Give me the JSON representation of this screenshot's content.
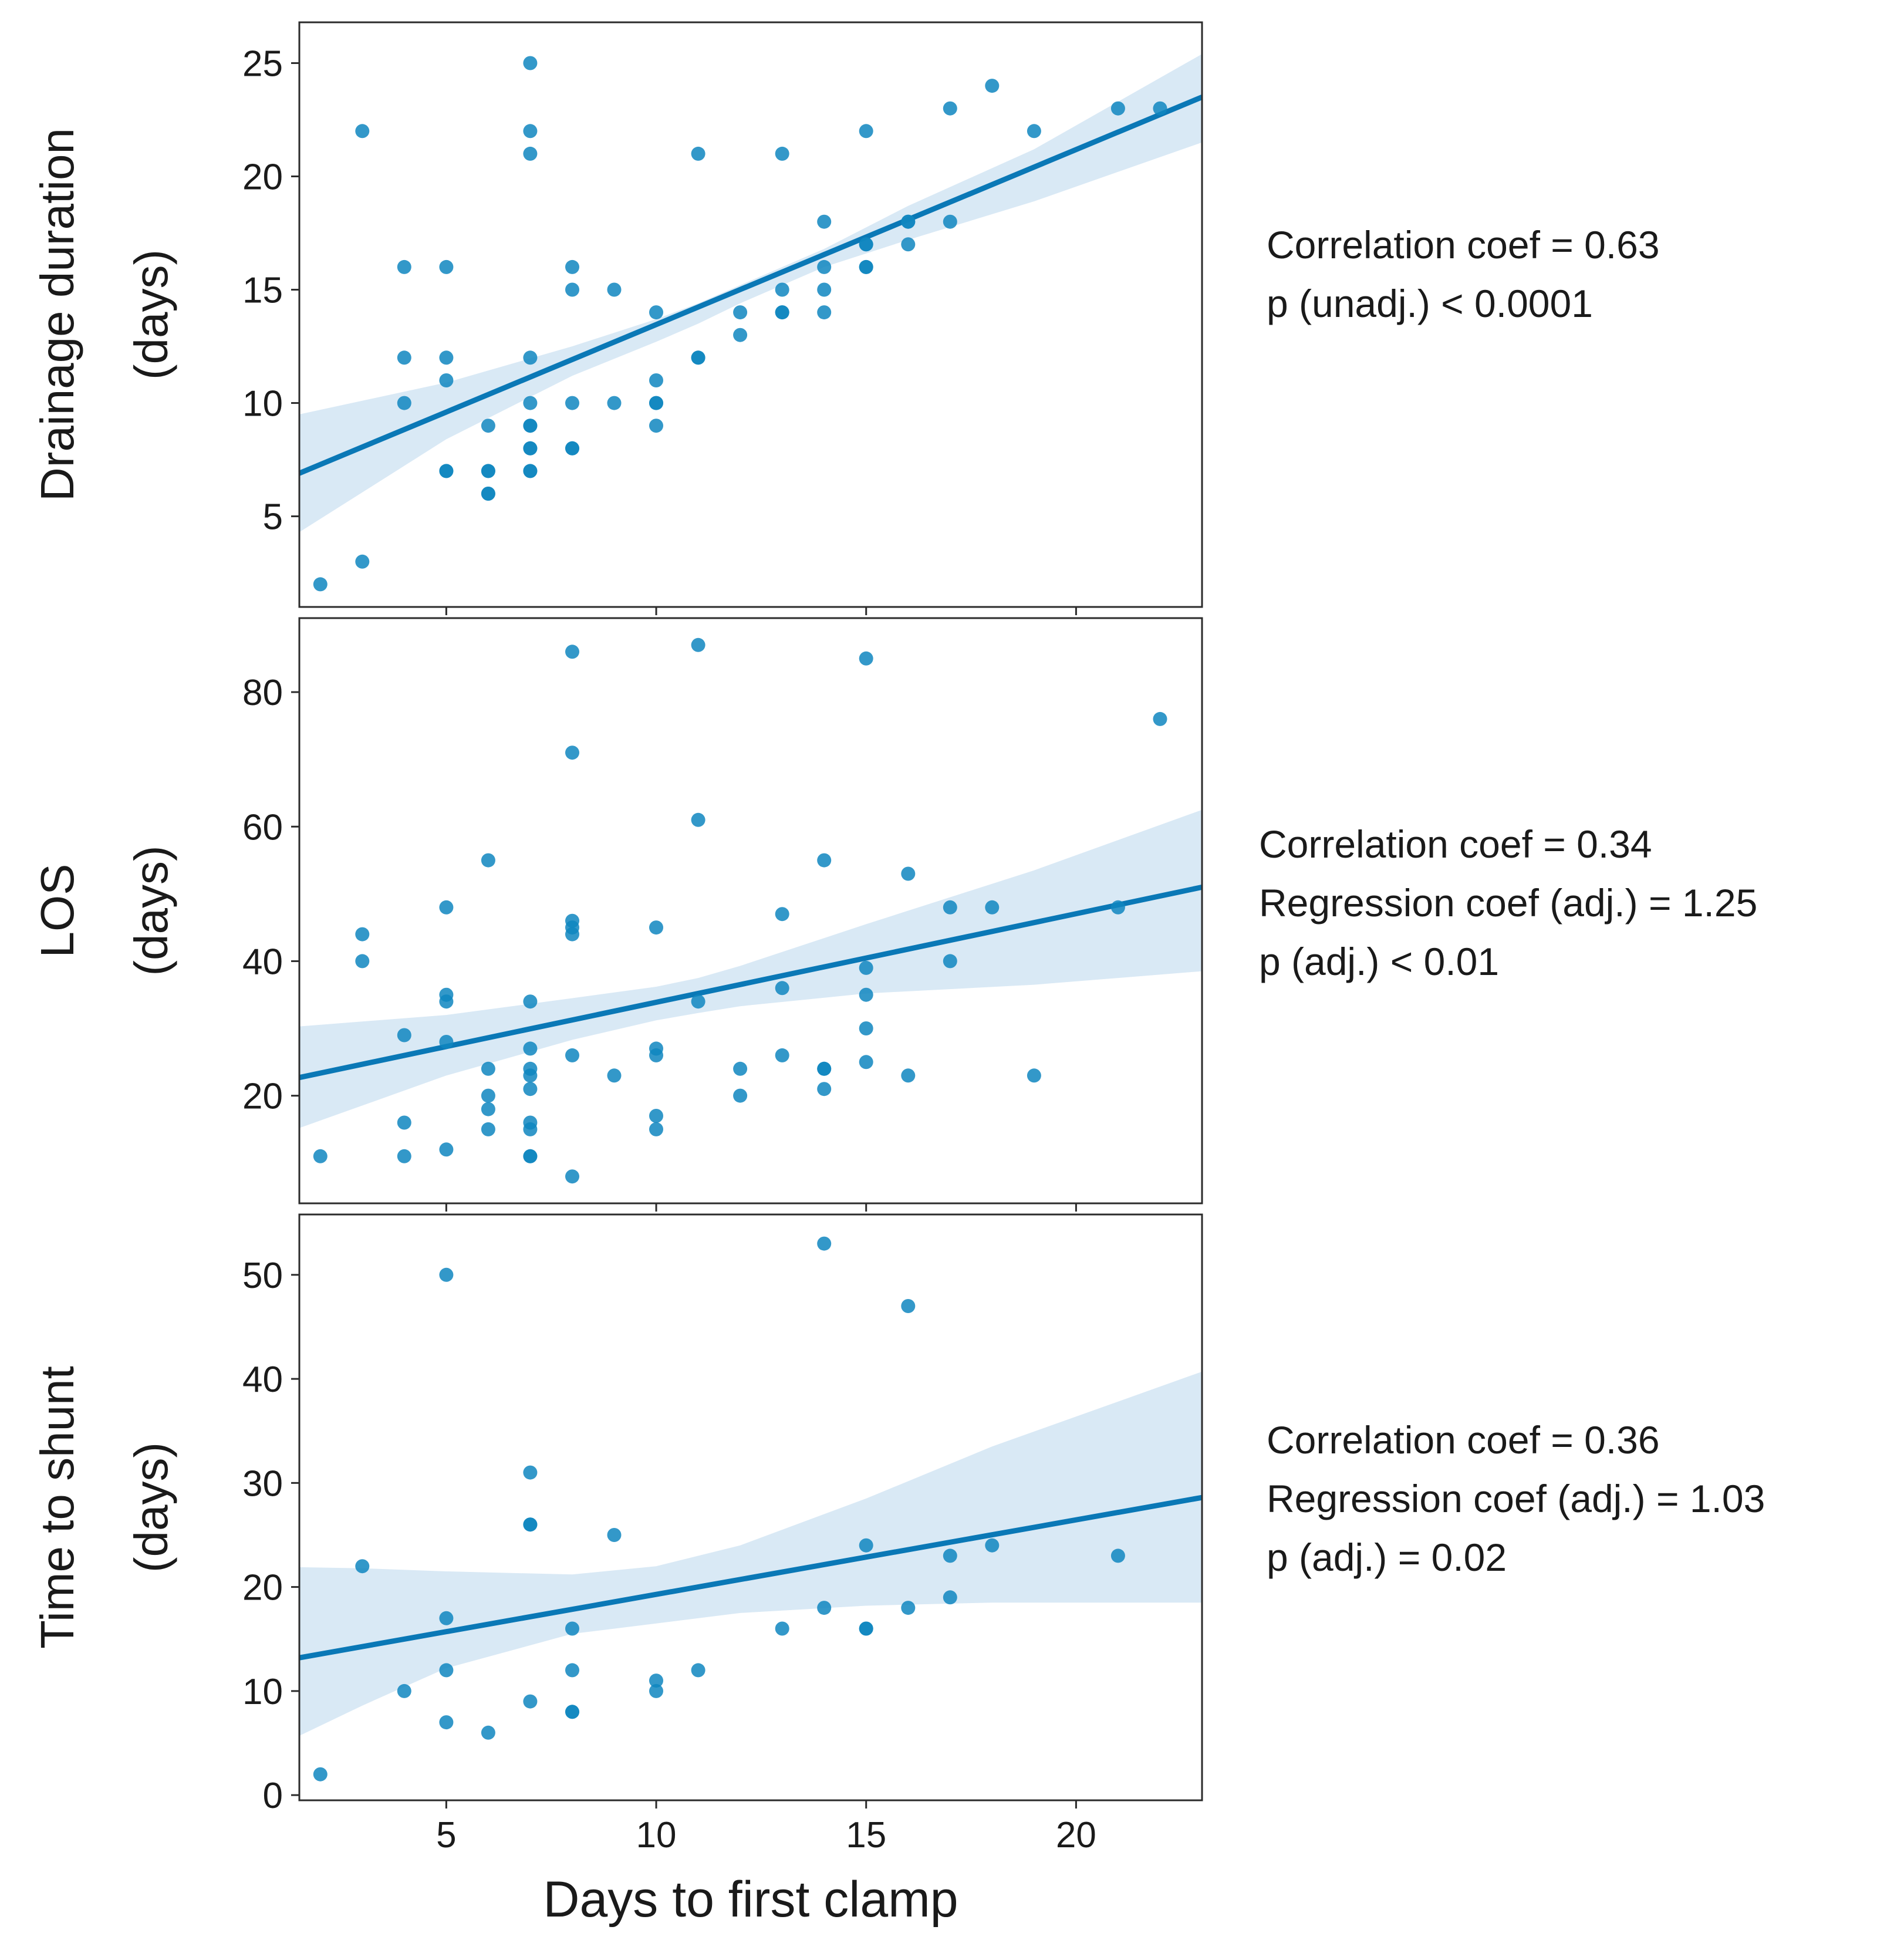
{
  "chart_data": [
    {
      "type": "scatter",
      "ylabel": [
        "Drainage duration",
        "(days)"
      ],
      "xlim": [
        1.5,
        23.0
      ],
      "ylim": [
        1.0,
        26.8
      ],
      "xticks": [
        5,
        10,
        15,
        20
      ],
      "yticks": [
        5,
        10,
        15,
        20,
        25
      ],
      "show_x_tick_labels": false,
      "grid": false,
      "color": "#0f86c0",
      "line_color": "#0a78b6",
      "band_color": "#d9e9f5",
      "points": [
        [
          2,
          2
        ],
        [
          3,
          3
        ],
        [
          3,
          22
        ],
        [
          4,
          16
        ],
        [
          4,
          12
        ],
        [
          4,
          10
        ],
        [
          5,
          16
        ],
        [
          5,
          12
        ],
        [
          5,
          11
        ],
        [
          5,
          7
        ],
        [
          5,
          7
        ],
        [
          6,
          9
        ],
        [
          6,
          7
        ],
        [
          6,
          7
        ],
        [
          6,
          6
        ],
        [
          6,
          6
        ],
        [
          7,
          25
        ],
        [
          7,
          22
        ],
        [
          7,
          21
        ],
        [
          7,
          12
        ],
        [
          7,
          10
        ],
        [
          7,
          9
        ],
        [
          7,
          9
        ],
        [
          7,
          8
        ],
        [
          7,
          8
        ],
        [
          7,
          7
        ],
        [
          7,
          7
        ],
        [
          8,
          16
        ],
        [
          8,
          15
        ],
        [
          8,
          10
        ],
        [
          8,
          8
        ],
        [
          8,
          8
        ],
        [
          9,
          15
        ],
        [
          9,
          10
        ],
        [
          10,
          14
        ],
        [
          10,
          11
        ],
        [
          10,
          10
        ],
        [
          10,
          10
        ],
        [
          10,
          9
        ],
        [
          11,
          21
        ],
        [
          11,
          12
        ],
        [
          11,
          12
        ],
        [
          12,
          14
        ],
        [
          12,
          13
        ],
        [
          13,
          21
        ],
        [
          13,
          15
        ],
        [
          13,
          14
        ],
        [
          13,
          14
        ],
        [
          14,
          18
        ],
        [
          14,
          16
        ],
        [
          14,
          15
        ],
        [
          14,
          14
        ],
        [
          15,
          22
        ],
        [
          15,
          17
        ],
        [
          15,
          17
        ],
        [
          15,
          16
        ],
        [
          15,
          16
        ],
        [
          16,
          18
        ],
        [
          16,
          18
        ],
        [
          16,
          17
        ],
        [
          17,
          23
        ],
        [
          17,
          18
        ],
        [
          18,
          24
        ],
        [
          19,
          22
        ],
        [
          21,
          23
        ],
        [
          22,
          23
        ]
      ],
      "fit": {
        "x": [
          1.5,
          23.0
        ],
        "y": [
          6.9,
          23.5
        ]
      },
      "ci_band": {
        "x": [
          1.5,
          5.0,
          8.0,
          10.0,
          11.0,
          12.0,
          14.0,
          16.0,
          19.0,
          23.0
        ],
        "lower": [
          4.3,
          8.4,
          11.2,
          12.7,
          13.5,
          14.4,
          16.0,
          17.2,
          18.9,
          21.5
        ],
        "upper": [
          9.5,
          10.9,
          12.5,
          13.7,
          14.4,
          15.2,
          16.8,
          18.7,
          21.2,
          25.4
        ]
      },
      "annotations": [
        "Correlation coef = 0.63",
        "p (unadj.) < 0.0001"
      ]
    },
    {
      "type": "scatter",
      "ylabel": [
        "LOS",
        "(days)"
      ],
      "xlim": [
        1.5,
        23.0
      ],
      "ylim": [
        4.0,
        91.0
      ],
      "xticks": [
        5,
        10,
        15,
        20
      ],
      "yticks": [
        20,
        40,
        60,
        80
      ],
      "show_x_tick_labels": false,
      "grid": false,
      "color": "#0f86c0",
      "line_color": "#0a78b6",
      "band_color": "#d9e9f5",
      "points": [
        [
          2,
          11
        ],
        [
          3,
          44
        ],
        [
          3,
          40
        ],
        [
          4,
          29
        ],
        [
          4,
          16
        ],
        [
          4,
          11
        ],
        [
          5,
          48
        ],
        [
          5,
          35
        ],
        [
          5,
          34
        ],
        [
          5,
          28
        ],
        [
          5,
          12
        ],
        [
          6,
          55
        ],
        [
          6,
          24
        ],
        [
          6,
          20
        ],
        [
          6,
          18
        ],
        [
          6,
          15
        ],
        [
          7,
          34
        ],
        [
          7,
          27
        ],
        [
          7,
          24
        ],
        [
          7,
          23
        ],
        [
          7,
          21
        ],
        [
          7,
          16
        ],
        [
          7,
          15
        ],
        [
          7,
          11
        ],
        [
          7,
          11
        ],
        [
          8,
          86
        ],
        [
          8,
          71
        ],
        [
          8,
          46
        ],
        [
          8,
          45
        ],
        [
          8,
          44
        ],
        [
          8,
          26
        ],
        [
          8,
          8
        ],
        [
          9,
          23
        ],
        [
          10,
          45
        ],
        [
          10,
          27
        ],
        [
          10,
          26
        ],
        [
          10,
          17
        ],
        [
          10,
          15
        ],
        [
          11,
          87
        ],
        [
          11,
          61
        ],
        [
          11,
          34
        ],
        [
          12,
          24
        ],
        [
          12,
          20
        ],
        [
          13,
          47
        ],
        [
          13,
          36
        ],
        [
          13,
          26
        ],
        [
          14,
          55
        ],
        [
          14,
          24
        ],
        [
          14,
          24
        ],
        [
          14,
          21
        ],
        [
          15,
          85
        ],
        [
          15,
          39
        ],
        [
          15,
          35
        ],
        [
          15,
          30
        ],
        [
          15,
          25
        ],
        [
          16,
          53
        ],
        [
          16,
          23
        ],
        [
          17,
          48
        ],
        [
          17,
          40
        ],
        [
          18,
          48
        ],
        [
          19,
          23
        ],
        [
          21,
          48
        ],
        [
          22,
          76
        ]
      ],
      "fit": {
        "x": [
          1.5,
          23.0
        ],
        "y": [
          22.7,
          51.0
        ]
      },
      "ci_band": {
        "x": [
          1.5,
          5.0,
          8.0,
          10.0,
          11.0,
          12.0,
          15.0,
          19.0,
          23.0
        ],
        "lower": [
          15.2,
          23.0,
          28.3,
          31.2,
          32.3,
          33.3,
          35.2,
          36.5,
          38.5
        ],
        "upper": [
          30.3,
          32.0,
          34.5,
          36.2,
          37.5,
          39.3,
          45.5,
          53.5,
          62.5
        ]
      },
      "annotations": [
        "Correlation coef = 0.34",
        "Regression coef (adj.) = 1.25",
        "p (adj.) < 0.01"
      ]
    },
    {
      "type": "scatter",
      "xlabel": "Days to first clamp",
      "ylabel": [
        "Time to shunt",
        "(days)"
      ],
      "xlim": [
        1.5,
        23.0
      ],
      "ylim": [
        -0.5,
        55.8
      ],
      "xticks": [
        5,
        10,
        15,
        20
      ],
      "yticks": [
        0,
        10,
        20,
        30,
        40,
        50
      ],
      "show_x_tick_labels": true,
      "grid": false,
      "color": "#0f86c0",
      "line_color": "#0a78b6",
      "band_color": "#d9e9f5",
      "points": [
        [
          2,
          2
        ],
        [
          3,
          22
        ],
        [
          4,
          10
        ],
        [
          5,
          50
        ],
        [
          5,
          17
        ],
        [
          5,
          12
        ],
        [
          5,
          7
        ],
        [
          6,
          6
        ],
        [
          7,
          31
        ],
        [
          7,
          26
        ],
        [
          7,
          26
        ],
        [
          7,
          9
        ],
        [
          8,
          16
        ],
        [
          8,
          12
        ],
        [
          8,
          8
        ],
        [
          8,
          8
        ],
        [
          9,
          25
        ],
        [
          10,
          11
        ],
        [
          10,
          10
        ],
        [
          11,
          12
        ],
        [
          13,
          16
        ],
        [
          14,
          53
        ],
        [
          14,
          18
        ],
        [
          15,
          24
        ],
        [
          15,
          16
        ],
        [
          15,
          16
        ],
        [
          16,
          47
        ],
        [
          16,
          18
        ],
        [
          17,
          23
        ],
        [
          17,
          19
        ],
        [
          18,
          24
        ],
        [
          21,
          23
        ]
      ],
      "fit": {
        "x": [
          1.5,
          23.0
        ],
        "y": [
          13.2,
          28.6
        ]
      },
      "ci_band": {
        "x": [
          1.5,
          3.0,
          5.0,
          8.0,
          10.0,
          12.0,
          15.0,
          18.0,
          23.0
        ],
        "lower": [
          5.7,
          8.6,
          12.2,
          15.5,
          16.5,
          17.5,
          18.2,
          18.5,
          18.5
        ],
        "upper": [
          21.9,
          21.8,
          21.5,
          21.2,
          22.0,
          24.0,
          28.5,
          33.5,
          40.7
        ]
      },
      "annotations": [
        "Correlation coef = 0.36",
        "Regression coef (adj.) = 1.03",
        "p (adj.) = 0.02"
      ]
    }
  ]
}
